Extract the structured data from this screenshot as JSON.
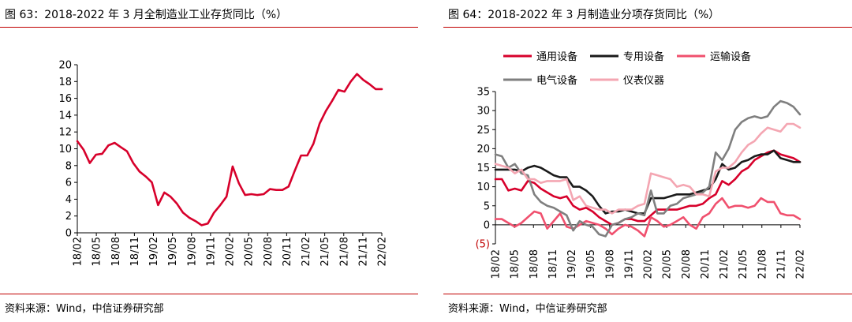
{
  "left": {
    "title": "图 63：2018-2022 年 3 月全制造业工业存货同比（%）",
    "source": "资料来源：Wind，中信证券研究部"
  },
  "right": {
    "title": "图 64：2018-2022 年 3 月制造业分项存货同比（%）",
    "source": "资料来源：Wind，中信证券研究部"
  },
  "chart_data": [
    {
      "type": "line",
      "title": "2018-2022 年 3 月全制造业工业存货同比（%）",
      "xlabel": "",
      "ylabel": "",
      "ylim": [
        0,
        20
      ],
      "yticks": [
        0,
        2,
        4,
        6,
        8,
        10,
        12,
        14,
        16,
        18,
        20
      ],
      "grid": false,
      "xticks": [
        "18/02",
        "18/05",
        "18/08",
        "18/11",
        "19/02",
        "19/05",
        "19/08",
        "19/11",
        "20/02",
        "20/05",
        "20/08",
        "20/11",
        "21/02",
        "21/05",
        "21/08",
        "21/11",
        "22/02"
      ],
      "series": [
        {
          "color": "#d7002b",
          "values": [
            10.9,
            9.9,
            8.3,
            9.3,
            9.4,
            10.4,
            10.7,
            10.2,
            9.7,
            8.3,
            7.3,
            6.7,
            6.0,
            3.3,
            4.8,
            4.3,
            3.5,
            2.4,
            1.8,
            1.4,
            0.9,
            1.1,
            2.4,
            3.3,
            4.3,
            7.9,
            5.9,
            4.5,
            4.6,
            4.5,
            4.6,
            5.2,
            5.1,
            5.1,
            5.5,
            7.4,
            9.2,
            9.2,
            10.6,
            13.0,
            14.5,
            15.7,
            17.0,
            16.8,
            18.0,
            18.9,
            18.2,
            17.7,
            17.1,
            17.1
          ]
        }
      ]
    },
    {
      "type": "line",
      "title": "2018-2022 年 3 月制造业分项存货同比（%）",
      "xlabel": "",
      "ylabel": "",
      "ylim": [
        -5,
        35
      ],
      "yticks": [
        35,
        30,
        25,
        20,
        15,
        10,
        5,
        0,
        -5
      ],
      "ytick_labels": [
        "35",
        "30",
        "25",
        "20",
        "15",
        "10",
        "5",
        "0",
        "(5)"
      ],
      "grid": false,
      "legend": "top",
      "xticks": [
        "18/02",
        "18/05",
        "18/08",
        "18/11",
        "19/02",
        "19/05",
        "19/08",
        "19/11",
        "20/02",
        "20/05",
        "20/08",
        "20/11",
        "21/02",
        "21/05",
        "21/08",
        "21/11",
        "22/02"
      ],
      "series": [
        {
          "name": "通用设备",
          "color": "#d7002b",
          "values": [
            12,
            12,
            9,
            9.5,
            9,
            11.5,
            11,
            9.5,
            8.5,
            7.5,
            7,
            7.5,
            5,
            4,
            4.5,
            3.5,
            2,
            1,
            0,
            0.5,
            1.5,
            1.5,
            1,
            1,
            2.5,
            4,
            4,
            4,
            4,
            4.5,
            5,
            5,
            5.5,
            7,
            8,
            11.5,
            10.5,
            12,
            14,
            15,
            17,
            18,
            19,
            19.5,
            18.5,
            18,
            17.5,
            16.5
          ]
        },
        {
          "name": "专用设备",
          "color": "#1a1a1a",
          "values": [
            14.5,
            14.5,
            14.5,
            14.5,
            14,
            15,
            15.5,
            15,
            14,
            13,
            12.5,
            12.5,
            10,
            10,
            9,
            7.5,
            5,
            3,
            3.5,
            3.5,
            4,
            3.5,
            3,
            3,
            7,
            7,
            7,
            7.5,
            8,
            8,
            8,
            8.5,
            9,
            9.5,
            12,
            16,
            14.5,
            15,
            16.5,
            17,
            18,
            18.5,
            18.5,
            19.5,
            17.5,
            17,
            16.5,
            16.5
          ]
        },
        {
          "name": "运输设备",
          "color": "#f0506e",
          "values": [
            1.5,
            1.5,
            0.5,
            -0.5,
            0.5,
            2,
            3.5,
            3,
            -1,
            1,
            3,
            -0.5,
            -1,
            0,
            1,
            0.5,
            0,
            -1,
            -2.5,
            -1,
            0,
            -0.5,
            -1.5,
            -3,
            2,
            1,
            -0.5,
            0,
            1,
            2,
            0,
            -1,
            2,
            3,
            5.5,
            7,
            4.5,
            5,
            5,
            4.5,
            5,
            7,
            6,
            6,
            3,
            2.5,
            2.5,
            1.5
          ]
        },
        {
          "name": "电气设备",
          "color": "#7f7f7f",
          "values": [
            18.5,
            18,
            15,
            16,
            13.5,
            13,
            8,
            6,
            5,
            4.5,
            3.5,
            2.5,
            -1.5,
            1,
            0,
            -0.5,
            -2.5,
            -3,
            0,
            0.5,
            1.5,
            2,
            3,
            2.5,
            9,
            3,
            3,
            5,
            5.5,
            7,
            7.5,
            8,
            8.5,
            10,
            19,
            17,
            20,
            25,
            27,
            28,
            28.5,
            28,
            28.5,
            31,
            32.5,
            32,
            31,
            29
          ]
        },
        {
          "name": "仪表仪器",
          "color": "#f4a6b2",
          "values": [
            16,
            15.5,
            15,
            13.5,
            14.5,
            12,
            12,
            11,
            11.5,
            11.5,
            11.5,
            12,
            6.5,
            7.5,
            5,
            4.5,
            4,
            4,
            3,
            4,
            4,
            4,
            5,
            5.5,
            13.5,
            13,
            12.5,
            12,
            10,
            10.5,
            10,
            8,
            8,
            7.5,
            14,
            15,
            15,
            16.5,
            19,
            21,
            22,
            24,
            25.5,
            25,
            24.5,
            26.5,
            26.5,
            25.5
          ]
        }
      ]
    }
  ]
}
